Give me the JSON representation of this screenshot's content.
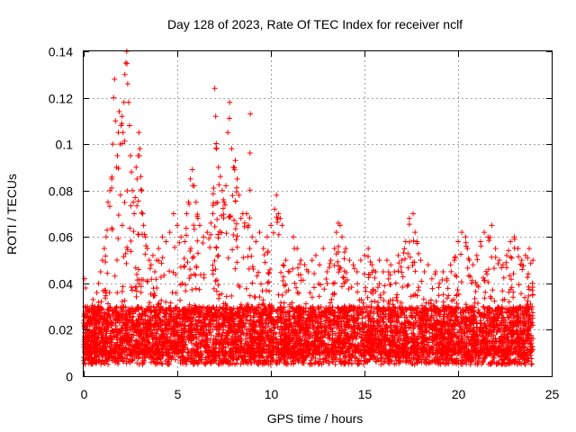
{
  "chart_data": {
    "type": "scatter",
    "title": "Day 128 of 2023, Rate Of TEC Index for receiver nclf",
    "xlabel": "GPS time / hours",
    "ylabel": "ROTI / TECUs",
    "xlim": [
      0,
      25
    ],
    "ylim": [
      0,
      0.14
    ],
    "xticks": [
      0,
      5,
      10,
      15,
      20,
      25
    ],
    "xtick_labels": [
      "0",
      "5",
      "10",
      "15",
      "20",
      "25"
    ],
    "yticks": [
      0,
      0.02,
      0.04,
      0.06,
      0.08,
      0.1,
      0.12,
      0.14
    ],
    "ytick_labels": [
      "0",
      "0.02",
      "0.04",
      "0.06",
      "0.08",
      "0.1",
      "0.12",
      "0.14"
    ],
    "grid": true,
    "legend": "none",
    "marker": "+",
    "marker_color": "#ff0000",
    "series": [
      {
        "x": [
          0.05,
          0.1,
          0.2,
          0.3,
          0.4,
          0.5,
          0.6,
          0.7,
          0.8,
          0.9,
          1.0,
          1.1,
          1.2,
          1.3,
          1.4,
          1.5,
          1.55,
          1.6,
          1.65,
          1.7,
          1.75,
          1.8,
          1.85,
          1.9,
          1.95,
          2.0,
          2.05,
          2.1,
          2.15,
          2.2,
          2.25,
          2.3,
          2.35,
          2.4,
          2.45,
          2.5,
          2.55,
          2.6,
          2.65,
          2.7,
          2.75,
          2.8,
          2.85,
          2.9,
          2.95,
          3.0,
          3.05,
          3.1,
          3.15,
          3.2,
          3.3,
          3.4,
          3.5,
          3.6,
          3.7,
          3.8,
          3.9,
          4.0,
          4.2,
          4.4,
          4.6,
          4.8,
          5.0,
          5.2,
          5.4,
          5.5,
          5.6,
          5.7,
          5.8,
          5.9,
          6.0,
          6.1,
          6.2,
          6.4,
          6.6,
          6.8,
          6.9,
          7.0,
          7.05,
          7.1,
          7.2,
          7.3,
          7.4,
          7.5,
          7.6,
          7.7,
          7.8,
          7.9,
          8.0,
          8.1,
          8.2,
          8.3,
          8.4,
          8.5,
          8.6,
          8.7,
          8.8,
          8.9,
          9.0,
          9.2,
          9.4,
          9.6,
          9.8,
          10.0,
          10.2,
          10.3,
          10.4,
          10.5,
          10.6,
          10.8,
          11.0,
          11.2,
          11.4,
          11.6,
          11.8,
          12.0,
          12.2,
          12.4,
          12.6,
          12.8,
          13.0,
          13.2,
          13.4,
          13.5,
          13.6,
          13.7,
          13.8,
          14.0,
          14.2,
          14.4,
          14.6,
          14.8,
          15.0,
          15.2,
          15.4,
          15.6,
          15.8,
          16.0,
          16.2,
          16.4,
          16.6,
          16.8,
          17.0,
          17.2,
          17.4,
          17.6,
          17.7,
          17.8,
          18.0,
          18.2,
          18.4,
          18.6,
          18.8,
          19.0,
          19.2,
          19.4,
          19.6,
          19.8,
          20.0,
          20.2,
          20.4,
          20.5,
          20.6,
          20.8,
          21.0,
          21.2,
          21.4,
          21.6,
          21.8,
          22.0,
          22.2,
          22.4,
          22.6,
          22.8,
          23.0,
          23.2,
          23.4,
          23.6,
          23.8,
          24.0
        ],
        "y": [
          0.042,
          0.038,
          0.03,
          0.025,
          0.028,
          0.033,
          0.03,
          0.036,
          0.04,
          0.045,
          0.05,
          0.055,
          0.06,
          0.075,
          0.08,
          0.085,
          0.1,
          0.12,
          0.128,
          0.11,
          0.09,
          0.095,
          0.105,
          0.114,
          0.1,
          0.108,
          0.112,
          0.105,
          0.118,
          0.13,
          0.135,
          0.14,
          0.126,
          0.118,
          0.108,
          0.095,
          0.088,
          0.08,
          0.075,
          0.07,
          0.077,
          0.09,
          0.085,
          0.095,
          0.105,
          0.098,
          0.086,
          0.08,
          0.07,
          0.065,
          0.06,
          0.055,
          0.05,
          0.048,
          0.052,
          0.045,
          0.05,
          0.055,
          0.06,
          0.058,
          0.062,
          0.07,
          0.065,
          0.06,
          0.058,
          0.07,
          0.075,
          0.085,
          0.089,
          0.082,
          0.075,
          0.068,
          0.065,
          0.06,
          0.062,
          0.066,
          0.07,
          0.124,
          0.112,
          0.098,
          0.09,
          0.086,
          0.08,
          0.075,
          0.082,
          0.105,
          0.118,
          0.098,
          0.09,
          0.093,
          0.085,
          0.078,
          0.068,
          0.07,
          0.066,
          0.07,
          0.065,
          0.113,
          0.06,
          0.058,
          0.062,
          0.055,
          0.06,
          0.065,
          0.072,
          0.078,
          0.07,
          0.068,
          0.065,
          0.05,
          0.045,
          0.06,
          0.055,
          0.05,
          0.048,
          0.045,
          0.05,
          0.052,
          0.048,
          0.055,
          0.045,
          0.05,
          0.055,
          0.062,
          0.066,
          0.065,
          0.06,
          0.055,
          0.05,
          0.048,
          0.045,
          0.05,
          0.052,
          0.055,
          0.048,
          0.045,
          0.05,
          0.045,
          0.05,
          0.048,
          0.045,
          0.052,
          0.05,
          0.058,
          0.068,
          0.07,
          0.062,
          0.058,
          0.05,
          0.045,
          0.048,
          0.042,
          0.045,
          0.04,
          0.045,
          0.042,
          0.048,
          0.05,
          0.058,
          0.062,
          0.06,
          0.055,
          0.05,
          0.048,
          0.052,
          0.058,
          0.062,
          0.06,
          0.065,
          0.055,
          0.05,
          0.048,
          0.052,
          0.058,
          0.06,
          0.055,
          0.05,
          0.052,
          0.055,
          0.05
        ]
      }
    ]
  }
}
